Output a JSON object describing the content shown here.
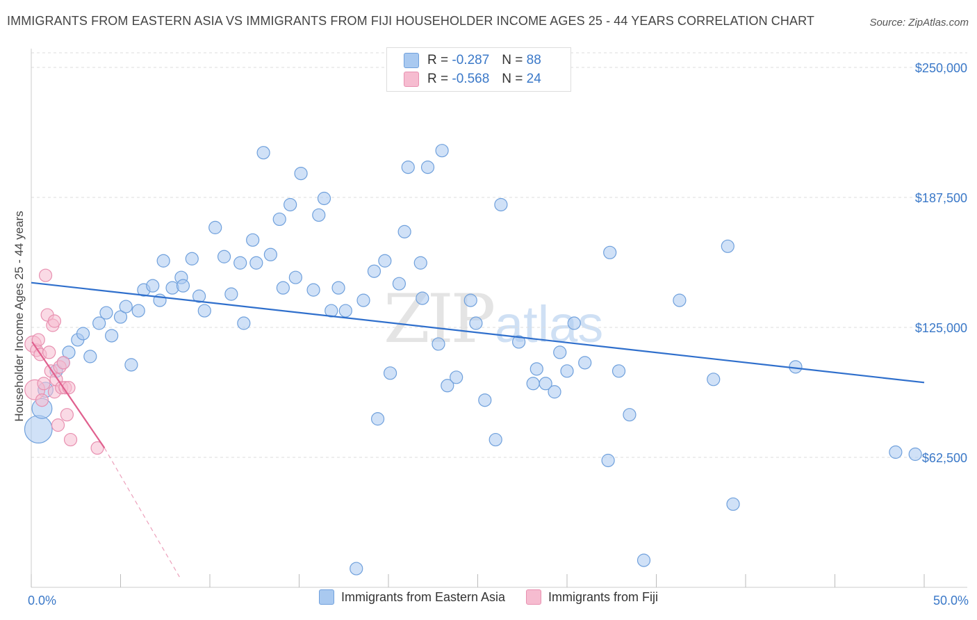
{
  "title": "IMMIGRANTS FROM EASTERN ASIA VS IMMIGRANTS FROM FIJI HOUSEHOLDER INCOME AGES 25 - 44 YEARS CORRELATION CHART",
  "source": "Source: ZipAtlas.com",
  "watermark": {
    "zip": "ZIP",
    "atlas": "atlas"
  },
  "legend": {
    "rows": [
      {
        "r_label": "R =",
        "r_value": "-0.287",
        "n_label": "N =",
        "n_value": "88"
      },
      {
        "r_label": "R =",
        "r_value": "-0.568",
        "n_label": "N =",
        "n_value": "24"
      }
    ]
  },
  "colors": {
    "blue_fill": "#a9c9f0",
    "blue_stroke": "#6fa0dc",
    "blue_line": "#2f6fcc",
    "pink_fill": "#f6bcd0",
    "pink_stroke": "#e890b0",
    "pink_line": "#e0608e",
    "tick_text": "#3a78c8",
    "grid": "#dddddd"
  },
  "chart_data": {
    "type": "scatter",
    "title": "IMMIGRANTS FROM EASTERN ASIA VS IMMIGRANTS FROM FIJI HOUSEHOLDER INCOME AGES 25 - 44 YEARS CORRELATION CHART",
    "xlabel": "",
    "ylabel": "Householder Income Ages 25 - 44 years",
    "xlim": [
      0,
      50
    ],
    "ylim": [
      0,
      250000
    ],
    "x_tick_labels": [
      {
        "value": 0,
        "label": "0.0%"
      },
      {
        "value": 50,
        "label": "50.0%"
      }
    ],
    "y_tick_labels": [
      {
        "value": 62500,
        "label": "$62,500"
      },
      {
        "value": 125000,
        "label": "$125,000"
      },
      {
        "value": 187500,
        "label": "$187,500"
      },
      {
        "value": 250000,
        "label": "$250,000"
      }
    ],
    "grid": true,
    "legend_position": "top-center",
    "series": [
      {
        "name": "Immigrants from Eastern Asia",
        "color": "#a9c9f0",
        "trend": {
          "x": [
            0,
            50
          ],
          "y": [
            146500,
            98500
          ]
        },
        "points": [
          {
            "x": 0.4,
            "y": 76000,
            "s": 2.2
          },
          {
            "x": 0.6,
            "y": 86000,
            "s": 1.6
          },
          {
            "x": 0.8,
            "y": 95000,
            "s": 1.2
          },
          {
            "x": 1.4,
            "y": 104000
          },
          {
            "x": 1.8,
            "y": 108000
          },
          {
            "x": 2.1,
            "y": 113000
          },
          {
            "x": 2.6,
            "y": 119000
          },
          {
            "x": 2.9,
            "y": 122000
          },
          {
            "x": 3.3,
            "y": 111000
          },
          {
            "x": 3.8,
            "y": 127000
          },
          {
            "x": 4.2,
            "y": 132000
          },
          {
            "x": 4.5,
            "y": 121000
          },
          {
            "x": 5.0,
            "y": 130000
          },
          {
            "x": 5.3,
            "y": 135000
          },
          {
            "x": 5.6,
            "y": 107000
          },
          {
            "x": 6.0,
            "y": 133000
          },
          {
            "x": 6.3,
            "y": 143000
          },
          {
            "x": 6.8,
            "y": 145000
          },
          {
            "x": 7.2,
            "y": 138000
          },
          {
            "x": 7.4,
            "y": 157000
          },
          {
            "x": 7.9,
            "y": 144000
          },
          {
            "x": 8.4,
            "y": 149000
          },
          {
            "x": 8.5,
            "y": 145000
          },
          {
            "x": 9.0,
            "y": 158000
          },
          {
            "x": 9.4,
            "y": 140000
          },
          {
            "x": 9.7,
            "y": 133000
          },
          {
            "x": 10.3,
            "y": 173000
          },
          {
            "x": 10.8,
            "y": 159000
          },
          {
            "x": 11.2,
            "y": 141000
          },
          {
            "x": 11.7,
            "y": 156000
          },
          {
            "x": 11.9,
            "y": 127000
          },
          {
            "x": 12.4,
            "y": 167000
          },
          {
            "x": 12.6,
            "y": 156000
          },
          {
            "x": 13.0,
            "y": 209000
          },
          {
            "x": 13.4,
            "y": 160000
          },
          {
            "x": 13.9,
            "y": 177000
          },
          {
            "x": 14.1,
            "y": 144000
          },
          {
            "x": 14.5,
            "y": 184000
          },
          {
            "x": 14.8,
            "y": 149000
          },
          {
            "x": 15.1,
            "y": 199000
          },
          {
            "x": 15.8,
            "y": 143000
          },
          {
            "x": 16.1,
            "y": 179000
          },
          {
            "x": 16.4,
            "y": 187000
          },
          {
            "x": 16.8,
            "y": 133000
          },
          {
            "x": 17.2,
            "y": 144000
          },
          {
            "x": 17.6,
            "y": 133000
          },
          {
            "x": 18.2,
            "y": 9000
          },
          {
            "x": 18.6,
            "y": 138000
          },
          {
            "x": 19.2,
            "y": 152000
          },
          {
            "x": 19.4,
            "y": 81000
          },
          {
            "x": 19.8,
            "y": 157000
          },
          {
            "x": 20.1,
            "y": 103000
          },
          {
            "x": 20.6,
            "y": 146000
          },
          {
            "x": 20.9,
            "y": 171000
          },
          {
            "x": 21.1,
            "y": 202000
          },
          {
            "x": 21.8,
            "y": 156000
          },
          {
            "x": 21.9,
            "y": 139000
          },
          {
            "x": 22.2,
            "y": 202000
          },
          {
            "x": 22.8,
            "y": 117000
          },
          {
            "x": 23.0,
            "y": 210000
          },
          {
            "x": 23.3,
            "y": 97000
          },
          {
            "x": 23.8,
            "y": 101000
          },
          {
            "x": 24.6,
            "y": 138000
          },
          {
            "x": 24.9,
            "y": 127000
          },
          {
            "x": 25.4,
            "y": 90000
          },
          {
            "x": 26.0,
            "y": 71000
          },
          {
            "x": 26.3,
            "y": 184000
          },
          {
            "x": 27.3,
            "y": 118000
          },
          {
            "x": 28.1,
            "y": 98000
          },
          {
            "x": 28.3,
            "y": 105000
          },
          {
            "x": 28.8,
            "y": 98000
          },
          {
            "x": 29.3,
            "y": 94000
          },
          {
            "x": 29.6,
            "y": 113000
          },
          {
            "x": 30.0,
            "y": 104000
          },
          {
            "x": 30.4,
            "y": 127000
          },
          {
            "x": 31.0,
            "y": 108000
          },
          {
            "x": 32.3,
            "y": 61000
          },
          {
            "x": 32.4,
            "y": 161000
          },
          {
            "x": 32.9,
            "y": 104000
          },
          {
            "x": 33.5,
            "y": 83000
          },
          {
            "x": 34.3,
            "y": 13000
          },
          {
            "x": 36.3,
            "y": 138000
          },
          {
            "x": 38.2,
            "y": 100000
          },
          {
            "x": 39.0,
            "y": 164000
          },
          {
            "x": 39.3,
            "y": 40000
          },
          {
            "x": 42.8,
            "y": 106000
          },
          {
            "x": 48.4,
            "y": 65000
          },
          {
            "x": 49.5,
            "y": 64000
          }
        ]
      },
      {
        "name": "Immigrants from Fiji",
        "color": "#f6bcd0",
        "trend": {
          "x": [
            0.05,
            4.1
          ],
          "y": [
            118000,
            67000
          ]
        },
        "trend_dashed": {
          "x": [
            4.1,
            8.3
          ],
          "y": [
            67000,
            5000
          ]
        },
        "points": [
          {
            "x": 0.1,
            "y": 117000,
            "s": 1.3
          },
          {
            "x": 0.2,
            "y": 95000,
            "s": 1.6
          },
          {
            "x": 0.3,
            "y": 114000
          },
          {
            "x": 0.4,
            "y": 119000
          },
          {
            "x": 0.5,
            "y": 112000
          },
          {
            "x": 0.6,
            "y": 90000
          },
          {
            "x": 0.7,
            "y": 98000
          },
          {
            "x": 0.8,
            "y": 150000
          },
          {
            "x": 0.9,
            "y": 131000
          },
          {
            "x": 1.0,
            "y": 113000
          },
          {
            "x": 1.1,
            "y": 104000
          },
          {
            "x": 1.2,
            "y": 126000
          },
          {
            "x": 1.3,
            "y": 128000
          },
          {
            "x": 1.3,
            "y": 94000
          },
          {
            "x": 1.4,
            "y": 100000
          },
          {
            "x": 1.5,
            "y": 78000
          },
          {
            "x": 1.6,
            "y": 106000
          },
          {
            "x": 1.7,
            "y": 96000
          },
          {
            "x": 1.8,
            "y": 108000
          },
          {
            "x": 1.9,
            "y": 96000
          },
          {
            "x": 2.0,
            "y": 83000
          },
          {
            "x": 2.1,
            "y": 96000
          },
          {
            "x": 2.2,
            "y": 71000
          },
          {
            "x": 3.7,
            "y": 67000
          }
        ]
      }
    ]
  }
}
